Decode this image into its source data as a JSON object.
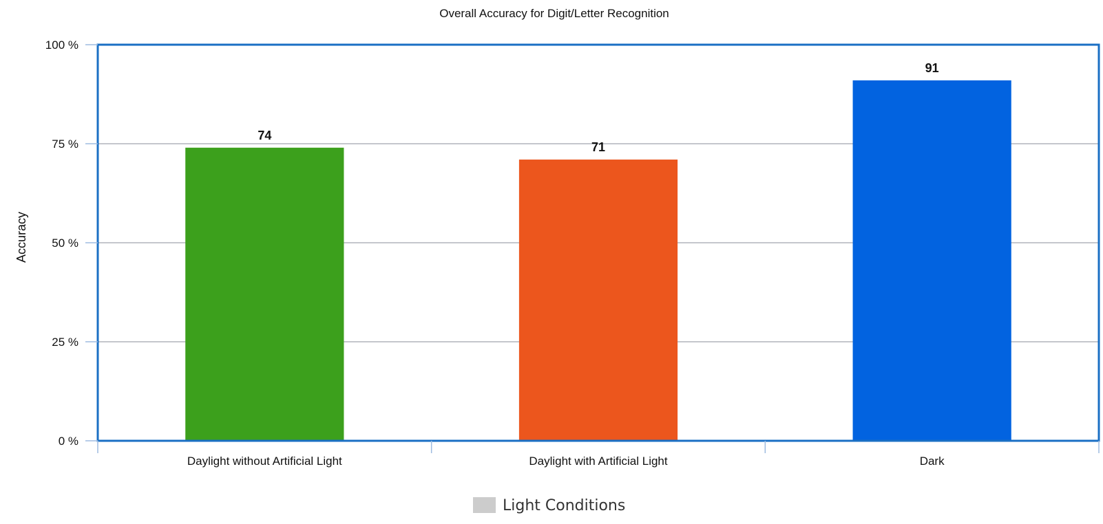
{
  "chart_data": {
    "type": "bar",
    "title": "Overall Accuracy for Digit/Letter Recognition",
    "xlabel": "",
    "ylabel": "Accuracy",
    "categories": [
      "Daylight without Artificial Light",
      "Daylight with Artificial Light",
      "Dark"
    ],
    "series": [
      {
        "name": "Light Conditions",
        "values": [
          74,
          71,
          91
        ],
        "data_labels": [
          "74",
          "71",
          "91"
        ],
        "colors": [
          "#3ca01c",
          "#ec561d",
          "#0263e0"
        ]
      }
    ],
    "ylim": [
      0,
      100
    ],
    "yticks": [
      0,
      25,
      50,
      75,
      100
    ],
    "ytick_labels": [
      "0 %",
      "25 %",
      "50 %",
      "75 %",
      "100 %"
    ],
    "grid": true,
    "legend": {
      "position": "bottom-center",
      "swatch_color": "#cccccc"
    },
    "colors": {
      "plot_border": "#1a6fc4",
      "gridline": "#b0b4bb",
      "axis_ticks": "#9dbbe0"
    }
  }
}
